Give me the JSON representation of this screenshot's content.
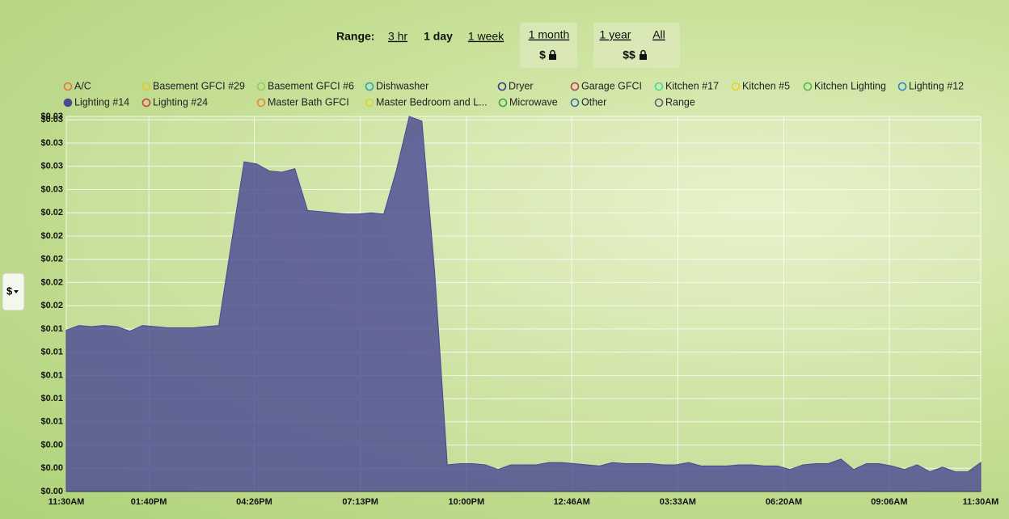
{
  "controls": {
    "label": "Range:",
    "options": [
      "3 hr",
      "1 day",
      "1 week",
      "1 month",
      "1 year",
      "All"
    ],
    "month_price": "$",
    "year_price": "$$",
    "unit_button": "$"
  },
  "chart_data": {
    "type": "area",
    "x": [
      0,
      20,
      40,
      60,
      80,
      100,
      120,
      140,
      160,
      180,
      200,
      220,
      240,
      260,
      280,
      300,
      320,
      340,
      360,
      380,
      400,
      420,
      440,
      460,
      480,
      500,
      520,
      540,
      560,
      580,
      600,
      620,
      640,
      660,
      680,
      700,
      720,
      740,
      760,
      780,
      800,
      820,
      840,
      860,
      880,
      900,
      920,
      940,
      960,
      980,
      1000,
      1020,
      1040,
      1060,
      1080,
      1100,
      1120,
      1140,
      1160,
      1180,
      1200,
      1220,
      1240,
      1260,
      1280,
      1300,
      1320,
      1340,
      1360,
      1380,
      1400,
      1420,
      1440
    ],
    "xlim": [
      0,
      1440
    ],
    "xticks": [
      {
        "value": 0,
        "label": "11:30AM"
      },
      {
        "value": 130,
        "label": "01:40PM"
      },
      {
        "value": 296,
        "label": "04:26PM"
      },
      {
        "value": 463,
        "label": "07:13PM"
      },
      {
        "value": 630,
        "label": "10:00PM"
      },
      {
        "value": 796,
        "label": "12:46AM"
      },
      {
        "value": 963,
        "label": "03:33AM"
      },
      {
        "value": 1130,
        "label": "06:20AM"
      },
      {
        "value": 1296,
        "label": "09:06AM"
      },
      {
        "value": 1440,
        "label": "11:30AM"
      }
    ],
    "ylim": [
      0,
      0.0323
    ],
    "yticks": [
      {
        "value": 0,
        "label": "$0.00"
      },
      {
        "value": 0.002,
        "label": "$0.00"
      },
      {
        "value": 0.004,
        "label": "$0.00"
      },
      {
        "value": 0.006,
        "label": "$0.01"
      },
      {
        "value": 0.008,
        "label": "$0.01"
      },
      {
        "value": 0.01,
        "label": "$0.01"
      },
      {
        "value": 0.012,
        "label": "$0.01"
      },
      {
        "value": 0.014,
        "label": "$0.01"
      },
      {
        "value": 0.016,
        "label": "$0.02"
      },
      {
        "value": 0.018,
        "label": "$0.02"
      },
      {
        "value": 0.02,
        "label": "$0.02"
      },
      {
        "value": 0.022,
        "label": "$0.02"
      },
      {
        "value": 0.024,
        "label": "$0.02"
      },
      {
        "value": 0.026,
        "label": "$0.03"
      },
      {
        "value": 0.028,
        "label": "$0.03"
      },
      {
        "value": 0.03,
        "label": "$0.03"
      },
      {
        "value": 0.032,
        "label": "$0.03"
      },
      {
        "value": 0.0323,
        "label": "$0.03"
      }
    ],
    "grid": true,
    "series": [
      {
        "name": "A/C",
        "color": "#e8743b",
        "visible": false
      },
      {
        "name": "Basement GFCI #29",
        "color": "#e3c92a",
        "visible": false
      },
      {
        "name": "Basement GFCI #6",
        "color": "#8fcf5a",
        "visible": false
      },
      {
        "name": "Dishwasher",
        "color": "#27a3b8",
        "visible": false
      },
      {
        "name": "Dryer",
        "color": "#2a3f8a",
        "visible": false
      },
      {
        "name": "Garage GFCI",
        "color": "#c0395a",
        "visible": false
      },
      {
        "name": "Kitchen #17",
        "color": "#3ddc9c",
        "visible": false
      },
      {
        "name": "Kitchen #5",
        "color": "#e9d31c",
        "visible": false
      },
      {
        "name": "Kitchen Lighting",
        "color": "#4cb84c",
        "visible": false
      },
      {
        "name": "Lighting #12",
        "color": "#2b88c8",
        "visible": false
      },
      {
        "name": "Lighting #14",
        "color": "#4a4a94",
        "visible": true,
        "values": [
          0.0139,
          0.0143,
          0.0142,
          0.0143,
          0.0142,
          0.0138,
          0.0143,
          0.0142,
          0.0141,
          0.0141,
          0.0141,
          0.0142,
          0.0143,
          0.0214,
          0.0284,
          0.0282,
          0.0276,
          0.0275,
          0.0278,
          0.0242,
          0.0241,
          0.024,
          0.0239,
          0.0239,
          0.024,
          0.0239,
          0.0277,
          0.0323,
          0.0319,
          0.019,
          0.0023,
          0.0024,
          0.0024,
          0.0023,
          0.0019,
          0.0023,
          0.0023,
          0.0023,
          0.0025,
          0.0025,
          0.0024,
          0.0023,
          0.0022,
          0.0025,
          0.0024,
          0.0024,
          0.0024,
          0.0023,
          0.0023,
          0.0025,
          0.0022,
          0.0022,
          0.0022,
          0.0023,
          0.0023,
          0.0022,
          0.0022,
          0.0019,
          0.0023,
          0.0024,
          0.0024,
          0.0028,
          0.0019,
          0.0024,
          0.0024,
          0.0022,
          0.0019,
          0.0023,
          0.0017,
          0.0021,
          0.0017,
          0.0017,
          0.0025
        ]
      },
      {
        "name": "Lighting #24",
        "color": "#d63a3a",
        "visible": false
      },
      {
        "name": "Master Bath GFCI",
        "color": "#e88a2a",
        "visible": false
      },
      {
        "name": "Master Bedroom and L...",
        "color": "#e0d22a",
        "visible": false
      },
      {
        "name": "Microwave",
        "color": "#3aa43a",
        "visible": false
      },
      {
        "name": "Other",
        "color": "#2f6f9c",
        "visible": false
      },
      {
        "name": "Range",
        "color": "#6a5a7a",
        "visible": false
      }
    ]
  }
}
